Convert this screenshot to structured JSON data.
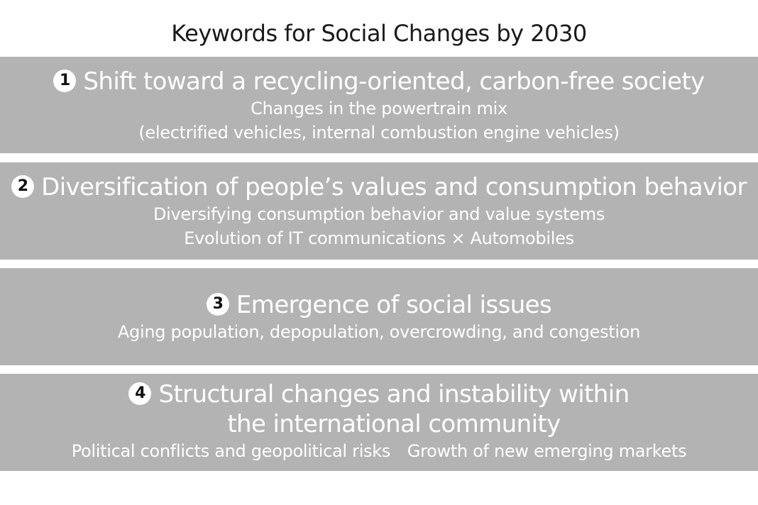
{
  "title": "Keywords for Social Changes by 2030",
  "panel_color": "#b3b3b3",
  "items": [
    {
      "number": "1",
      "heading": "Shift toward a recycling-oriented, carbon-free society",
      "lines": [
        "Changes in the powertrain mix",
        "(electrified vehicles, internal combustion engine vehicles)"
      ]
    },
    {
      "number": "2",
      "heading": "Diversification of people’s values and consumption behavior",
      "lines": [
        "Diversifying consumption behavior and value systems",
        "Evolution of IT communications × Automobiles"
      ]
    },
    {
      "number": "3",
      "heading": "Emergence of social issues",
      "lines": [
        "Aging population, depopulation, overcrowding, and congestion"
      ]
    },
    {
      "number": "4",
      "heading_lines": [
        "Structural changes and instability within",
        "the international community"
      ],
      "lines": [
        "Political conflicts and geopolitical risks Growth of new emerging markets"
      ]
    }
  ]
}
